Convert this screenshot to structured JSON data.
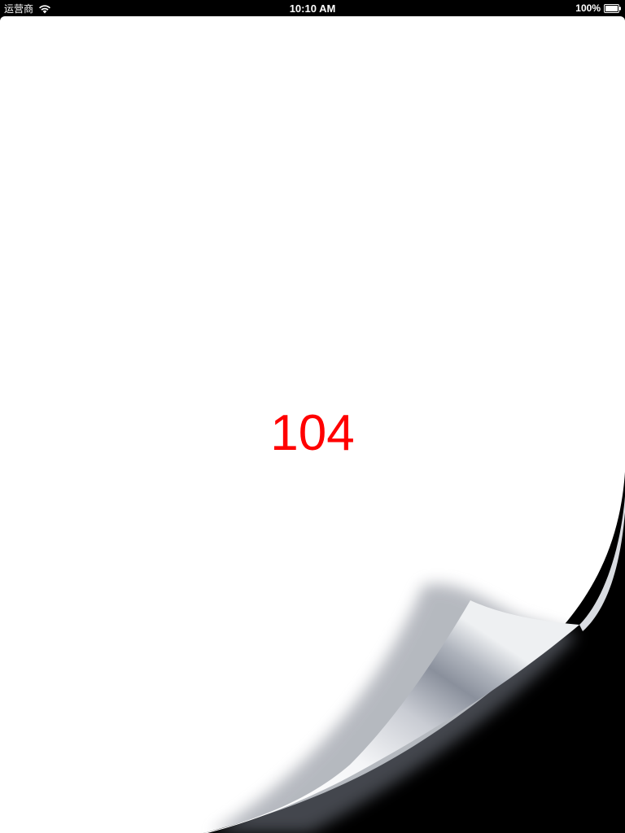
{
  "status_bar": {
    "carrier": "运营商",
    "time": "10:10 AM",
    "battery": "100%"
  },
  "page": {
    "number": "104",
    "number_color": "#ff0000"
  },
  "icons": [
    "wifi-icon",
    "battery-icon"
  ]
}
